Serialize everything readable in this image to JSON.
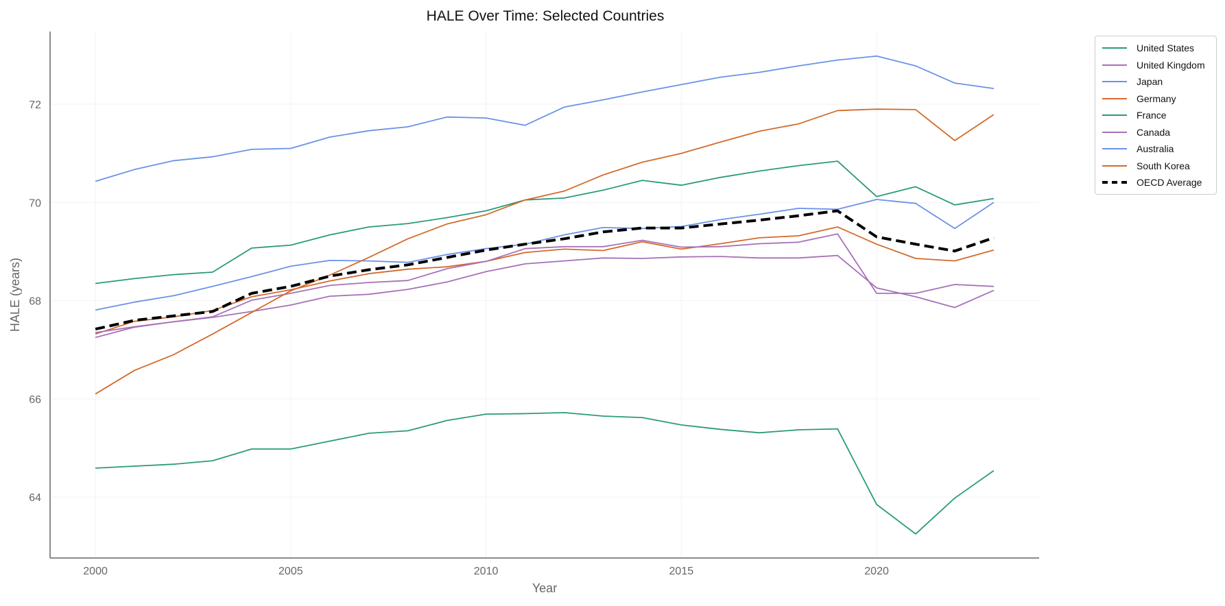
{
  "chart_data": {
    "type": "line",
    "title": "HALE Over Time: Selected Countries",
    "xlabel": "Year",
    "ylabel": "HALE (years)",
    "xlim": [
      1998.84,
      2024.16
    ],
    "ylim": [
      62.76,
      73.48
    ],
    "xticks": [
      "2000",
      "2005",
      "2010",
      "2015",
      "2020"
    ],
    "yticks": [
      "64",
      "66",
      "68",
      "70",
      "72"
    ],
    "grid": true,
    "legend_position": "outside-top-right",
    "x": [
      2000,
      2001,
      2002,
      2003,
      2004,
      2005,
      2006,
      2007,
      2008,
      2009,
      2010,
      2011,
      2012,
      2013,
      2014,
      2015,
      2016,
      2017,
      2018,
      2019,
      2020,
      2021,
      2022,
      2023
    ],
    "series": [
      {
        "name": "United States",
        "color": "#2a9a7a",
        "dashed": false,
        "values": [
          64.59,
          64.63,
          64.67,
          64.74,
          64.98,
          64.98,
          65.14,
          65.3,
          65.35,
          65.56,
          65.69,
          65.7,
          65.72,
          65.65,
          65.62,
          65.47,
          65.38,
          65.31,
          65.37,
          65.39,
          63.85,
          63.25,
          63.98,
          64.54
        ]
      },
      {
        "name": "United Kingdom",
        "color": "#a770b9",
        "dashed": false,
        "values": [
          67.25,
          67.46,
          67.57,
          67.66,
          67.78,
          67.91,
          68.09,
          68.13,
          68.23,
          68.38,
          68.59,
          68.75,
          68.81,
          68.87,
          68.86,
          68.89,
          68.9,
          68.87,
          68.87,
          68.92,
          68.26,
          68.08,
          67.86,
          68.21
        ]
      },
      {
        "name": "Japan",
        "color": "#6a92e6",
        "dashed": false,
        "values": [
          70.43,
          70.67,
          70.85,
          70.93,
          71.08,
          71.1,
          71.33,
          71.46,
          71.54,
          71.74,
          71.72,
          71.57,
          71.94,
          72.09,
          72.25,
          72.4,
          72.55,
          72.65,
          72.78,
          72.9,
          72.98,
          72.78,
          72.43,
          72.32
        ]
      },
      {
        "name": "Germany",
        "color": "#d4692a",
        "dashed": false,
        "values": [
          67.32,
          67.58,
          67.67,
          67.8,
          68.08,
          68.22,
          68.4,
          68.55,
          68.64,
          68.69,
          68.8,
          68.98,
          69.05,
          69.02,
          69.2,
          69.05,
          69.16,
          69.28,
          69.32,
          69.5,
          69.15,
          68.86,
          68.81,
          69.03
        ]
      },
      {
        "name": "France",
        "color": "#2a9a7a",
        "dashed": false,
        "values": [
          68.35,
          68.45,
          68.53,
          68.58,
          69.07,
          69.13,
          69.34,
          69.5,
          69.57,
          69.69,
          69.83,
          70.05,
          70.09,
          70.25,
          70.45,
          70.35,
          70.51,
          70.64,
          70.75,
          70.84,
          70.12,
          70.32,
          69.95,
          70.08
        ]
      },
      {
        "name": "Canada",
        "color": "#a770b9",
        "dashed": false,
        "values": [
          67.35,
          67.47,
          67.57,
          67.67,
          68.01,
          68.15,
          68.31,
          68.37,
          68.41,
          68.65,
          68.8,
          69.06,
          69.1,
          69.1,
          69.23,
          69.09,
          69.1,
          69.16,
          69.19,
          69.36,
          68.15,
          68.15,
          68.33,
          68.29
        ]
      },
      {
        "name": "Australia",
        "color": "#6a92e6",
        "dashed": false,
        "values": [
          67.81,
          67.97,
          68.1,
          68.29,
          68.49,
          68.7,
          68.82,
          68.81,
          68.78,
          68.94,
          69.06,
          69.15,
          69.34,
          69.49,
          69.47,
          69.51,
          69.65,
          69.76,
          69.88,
          69.86,
          70.06,
          69.98,
          69.47,
          70.0
        ]
      },
      {
        "name": "South Korea",
        "color": "#d4692a",
        "dashed": false,
        "values": [
          66.1,
          66.58,
          66.9,
          67.32,
          67.76,
          68.2,
          68.52,
          68.88,
          69.26,
          69.56,
          69.75,
          70.05,
          70.23,
          70.56,
          70.82,
          71.0,
          71.23,
          71.45,
          71.6,
          71.87,
          71.9,
          71.89,
          71.26,
          71.79
        ]
      },
      {
        "name": "OECD Average",
        "color": "#000000",
        "dashed": true,
        "values": [
          67.42,
          67.6,
          67.69,
          67.78,
          68.15,
          68.29,
          68.5,
          68.63,
          68.73,
          68.88,
          69.03,
          69.15,
          69.26,
          69.4,
          69.48,
          69.48,
          69.56,
          69.64,
          69.73,
          69.83,
          69.3,
          69.15,
          69.01,
          69.28
        ]
      }
    ]
  }
}
